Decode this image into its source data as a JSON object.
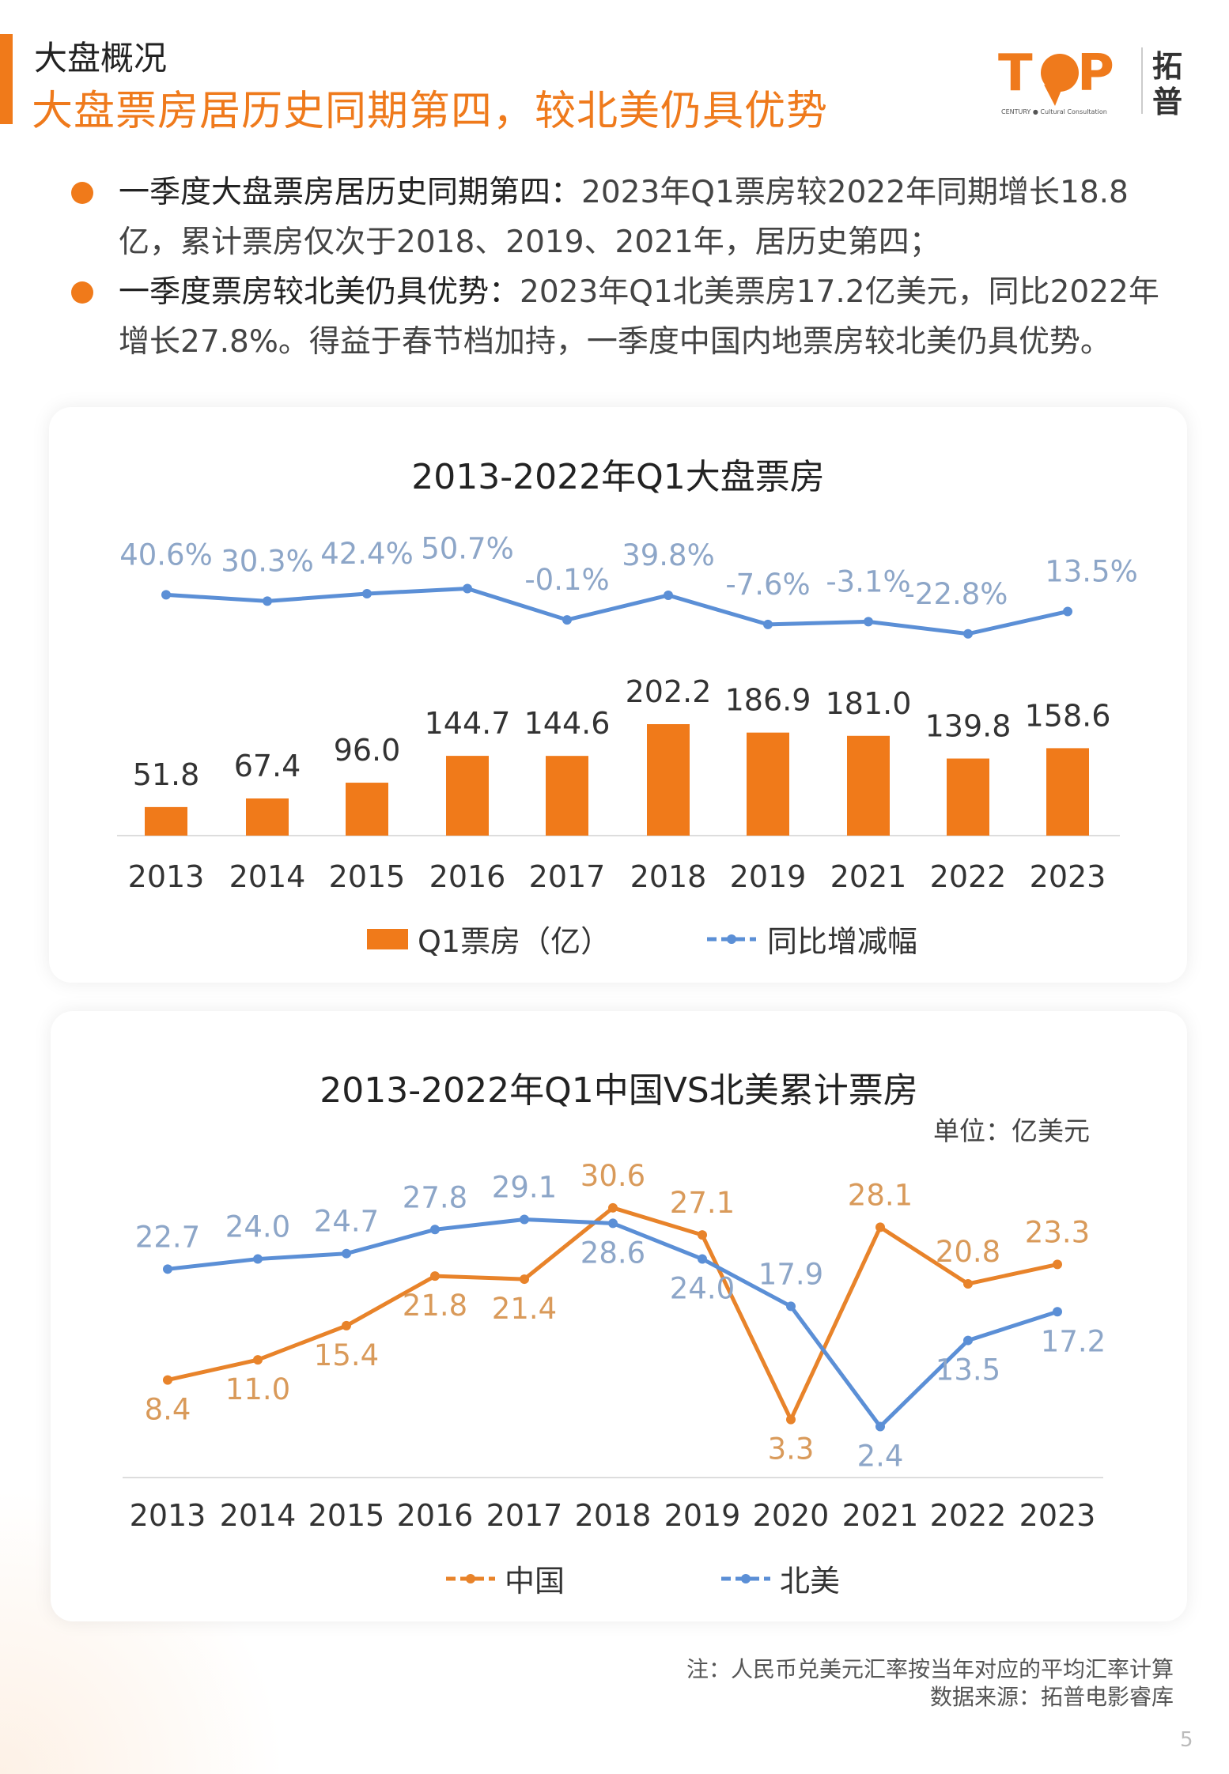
{
  "header": {
    "section": "大盘概况",
    "headline": "大盘票房居历史同期第四，较北美仍具优势",
    "logo_text": "TOP CENTURY Cultural Consultation 拓普"
  },
  "bullets": [
    {
      "bold": "一季度大盘票房居历史同期第四：",
      "text": "2023年Q1票房较2022年同期增长18.8亿，累计票房仅次于2018、2019、2021年，居历史第四；"
    },
    {
      "bold": "一季度票房较北美仍具优势：",
      "text": "2023年Q1北美票房17.2亿美元，同比2022年增长27.8%。得益于春节档加持，一季度中国内地票房较北美仍具优势。"
    }
  ],
  "colors": {
    "accent": "#f07a1a",
    "china": "#e8832a",
    "na": "#5b8fd6",
    "growth": "#5b8fd6"
  },
  "chart_data": [
    {
      "type": "bar",
      "title": "2013-2022年Q1大盘票房",
      "categories": [
        "2013",
        "2014",
        "2015",
        "2016",
        "2017",
        "2018",
        "2019",
        "2021",
        "2022",
        "2023"
      ],
      "series": [
        {
          "name": "Q1票房（亿）",
          "type": "bar",
          "values": [
            51.8,
            67.4,
            96.0,
            144.7,
            144.6,
            202.2,
            186.9,
            181.0,
            139.8,
            158.6
          ],
          "labels": [
            "51.8",
            "67.4",
            "96.0",
            "144.7",
            "144.6",
            "202.2",
            "186.9",
            "181.0",
            "139.8",
            "158.6"
          ]
        },
        {
          "name": "同比增减幅",
          "type": "line",
          "values": [
            40.6,
            30.3,
            42.4,
            50.7,
            -0.1,
            39.8,
            -7.6,
            -3.1,
            -22.8,
            13.5
          ],
          "labels": [
            "40.6%",
            "30.3%",
            "42.4%",
            "50.7%",
            "-0.1%",
            "39.8%",
            "-7.6%",
            "-3.1%",
            "-22.8%",
            "13.5%"
          ]
        }
      ],
      "legend": "bottom"
    },
    {
      "type": "line",
      "title": "2013-2022年Q1中国VS北美累计票房",
      "unit": "单位：亿美元",
      "categories": [
        "2013",
        "2014",
        "2015",
        "2016",
        "2017",
        "2018",
        "2019",
        "2020",
        "2021",
        "2022",
        "2023"
      ],
      "series": [
        {
          "name": "中国",
          "values": [
            8.4,
            11.0,
            15.4,
            21.8,
            21.4,
            30.6,
            27.1,
            3.3,
            28.1,
            20.8,
            23.3
          ],
          "labels": [
            "8.4",
            "11.0",
            "15.4",
            "21.8",
            "21.4",
            "30.6",
            "27.1",
            "3.3",
            "28.1",
            "20.8",
            "23.3"
          ]
        },
        {
          "name": "北美",
          "values": [
            22.7,
            24.0,
            24.7,
            27.8,
            29.1,
            28.6,
            24.0,
            17.9,
            2.4,
            13.5,
            17.2
          ],
          "labels": [
            "22.7",
            "24.0",
            "24.7",
            "27.8",
            "29.1",
            "28.6",
            "24.0",
            "17.9",
            "2.4",
            "13.5",
            "17.2"
          ]
        }
      ],
      "legend": "bottom"
    }
  ],
  "notes": {
    "note": "注：人民币兑美元汇率按当年对应的平均汇率计算",
    "source": "数据来源：拓普电影睿库"
  },
  "page_number": "5"
}
